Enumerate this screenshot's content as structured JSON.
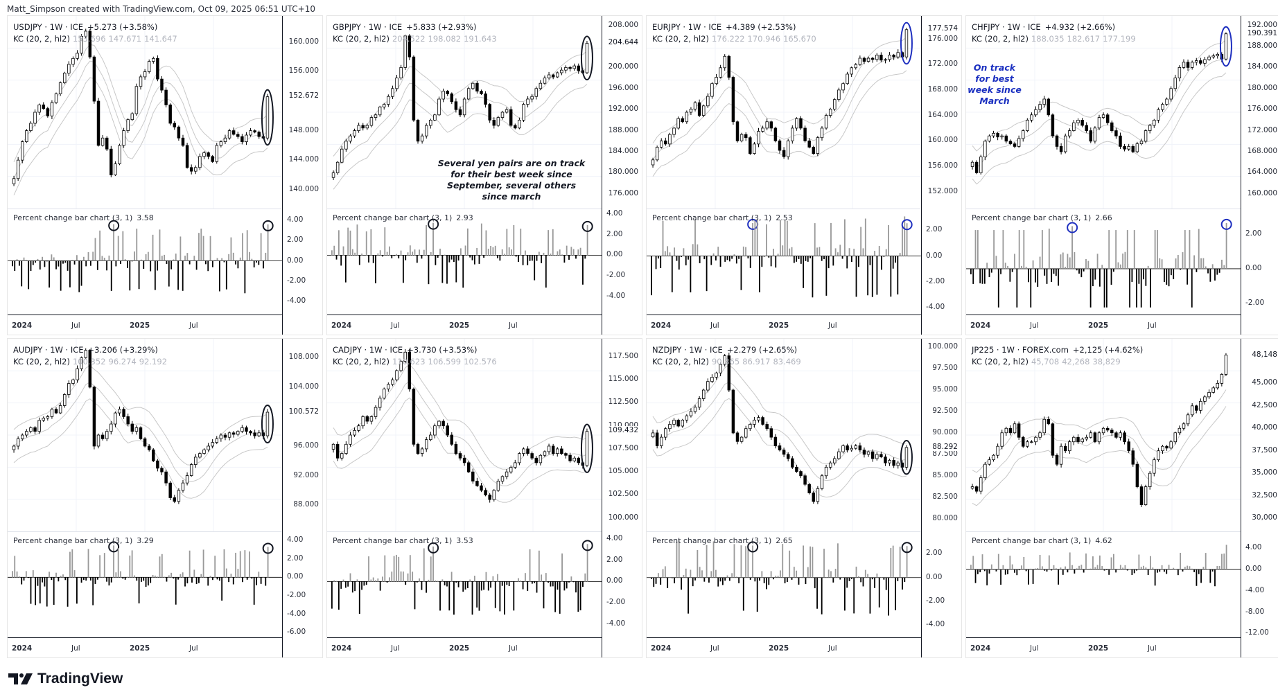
{
  "credit": "Matt_Simpson created with TradingView.com, Oct 09, 2025 06:51 UTC+10",
  "logo": {
    "text": "TradingView",
    "icon": "tradingview-logo-icon"
  },
  "colors": {
    "up_bar": "#999999",
    "down_bar": "#000000",
    "candle": "#000000",
    "kc_band": "#c8c8c8",
    "grid": "#f0f3fa",
    "circle_black": "#131722",
    "circle_blue": "#1e2fbf",
    "annotation_blue": "#1a2fc0"
  },
  "time_axis": [
    "2024",
    "Jul",
    "2025",
    "Jul"
  ],
  "annotations": {
    "gbpjpy": "Several yen pairs are on track for their best week since September, several others since march",
    "chfjpy": "On track for best week since March"
  },
  "chart_data": [
    {
      "id": "usdjpy",
      "type": "candlestick",
      "title": "USDJPY · 1W · ICE",
      "change": "+5.273 (+3.58%)",
      "kc_label": "KC (20, 2, hl2)",
      "kc_values": [
        "153.696",
        "147.671",
        "141.647"
      ],
      "price_ticks": [
        "160.000",
        "156.000",
        "148.000",
        "144.000",
        "140.000"
      ],
      "last_price": "152.672",
      "ylim": [
        138,
        163
      ],
      "closes": [
        141.5,
        144,
        146.5,
        148,
        149,
        150.5,
        151.5,
        151,
        150,
        151.8,
        153,
        154.5,
        155.8,
        157,
        157.8,
        158.5,
        160.8,
        161.5,
        158,
        152,
        146,
        147,
        145.5,
        142,
        143.5,
        146,
        148,
        149.5,
        150.3,
        154,
        155.3,
        156,
        157.4,
        157.8,
        155,
        153.5,
        151.5,
        149,
        148.5,
        147,
        146,
        143,
        142.5,
        143,
        144.5,
        145,
        144.5,
        143.8,
        146,
        146.5,
        147,
        148,
        147.5,
        147.2,
        146.5,
        147.4,
        148,
        147.8,
        147.2,
        147,
        152.6
      ],
      "pct_label": "Percent change bar chart (3, 1)",
      "pct_value": "3.58",
      "pct_ticks": [
        "4.00",
        "2.00",
        "0.00",
        "-2.00",
        "-4.00"
      ],
      "pct_ylim": [
        -5,
        4.8
      ],
      "circle_color": "black"
    },
    {
      "id": "gbpjpy",
      "type": "candlestick",
      "title": "GBPJPY · 1W · ICE",
      "change": "+5.833 (+2.93%)",
      "kc_label": "KC (20, 2, hl2)",
      "kc_values": [
        "204.522",
        "198.082",
        "191.643"
      ],
      "price_ticks": [
        "208.000",
        "200.000",
        "196.000",
        "192.000",
        "188.000",
        "184.000",
        "180.000",
        "176.000"
      ],
      "last_price": "204.644",
      "ylim": [
        174,
        209
      ],
      "closes": [
        180,
        182,
        184.5,
        186,
        187,
        188,
        189,
        188.5,
        189,
        190.5,
        191,
        192.5,
        193,
        194.5,
        196,
        198,
        200,
        206,
        202,
        190,
        186,
        187,
        189,
        190,
        191,
        194,
        195.5,
        195,
        193.5,
        192,
        191,
        194,
        196,
        197,
        195.5,
        195,
        193,
        190,
        189,
        190.5,
        191.5,
        192,
        189,
        188.5,
        190,
        193,
        194,
        194.5,
        196,
        197,
        198,
        198.6,
        198.2,
        199,
        199.5,
        200,
        199.8,
        200.3,
        199.4,
        199,
        204.6
      ],
      "pct_label": "Percent change bar chart (3, 1)",
      "pct_value": "2.93",
      "pct_ticks": [
        "4.00",
        "2.00",
        "0.00",
        "-2.00",
        "-4.00"
      ],
      "pct_ylim": [
        -5.5,
        4.2
      ],
      "circle_color": "black"
    },
    {
      "id": "eurjpy",
      "type": "candlestick",
      "title": "EURJPY · 1W · ICE",
      "change": "+4.389 (+2.53%)",
      "kc_label": "KC (20, 2, hl2)",
      "kc_values": [
        "176.222",
        "170.946",
        "165.670"
      ],
      "price_ticks": [
        "176.000",
        "172.000",
        "168.000",
        "164.000",
        "160.000",
        "156.000",
        "152.000"
      ],
      "last_price": "177.574",
      "ylim": [
        150,
        179
      ],
      "closes": [
        157,
        159,
        160,
        159.5,
        161,
        162,
        163.5,
        163,
        164.5,
        165,
        166,
        164,
        165.5,
        167,
        169,
        170,
        171.5,
        173.3,
        170,
        163,
        160,
        161,
        160.5,
        158,
        159.5,
        161.5,
        162,
        163,
        162,
        160,
        158.5,
        157.5,
        160,
        162,
        163.5,
        162,
        160,
        159,
        158,
        160.5,
        162,
        164,
        165,
        166.5,
        168,
        169,
        170.5,
        171.5,
        172,
        173,
        172.5,
        173,
        172.8,
        173.5,
        172.7,
        172.8,
        173.5,
        173.2,
        173.9,
        173.2,
        177.5
      ],
      "pct_label": "Percent change bar chart (3, 1)",
      "pct_value": "2.53",
      "pct_ticks": [
        "2.00",
        "0.00",
        "-2.00",
        "-4.00"
      ],
      "pct_ylim": [
        -4.3,
        3.4
      ],
      "circle_color": "blue"
    },
    {
      "id": "chfjpy",
      "type": "candlestick",
      "title": "CHFJPY · 1W · ICE",
      "change": "+4.932 (+2.66%)",
      "kc_label": "KC (20, 2, hl2)",
      "kc_values": [
        "188.035",
        "182.617",
        "177.199"
      ],
      "price_ticks": [
        "192.000",
        "188.000",
        "184.000",
        "180.000",
        "176.000",
        "172.000",
        "168.000",
        "164.000",
        "160.000"
      ],
      "last_price": "190.391",
      "ylim": [
        158,
        193
      ],
      "closes": [
        166,
        164,
        167,
        170,
        171,
        171.5,
        170.8,
        171,
        170,
        169.5,
        169,
        170.5,
        172,
        174,
        175,
        176,
        177,
        178,
        175,
        171,
        169,
        168,
        171,
        172,
        173.5,
        174,
        173,
        172,
        170,
        172.5,
        174.5,
        175,
        173.5,
        172,
        171,
        169,
        168.5,
        169,
        168,
        169.5,
        170,
        172,
        173,
        174,
        176,
        177,
        178,
        180,
        182,
        184,
        185,
        184,
        185,
        185.3,
        184.8,
        185.5,
        186,
        186.2,
        186.5,
        185.6,
        190.4
      ],
      "pct_label": "Percent change bar chart (3, 1)",
      "pct_value": "2.66",
      "pct_ticks": [
        "2.00",
        "0.00",
        "-2.00"
      ],
      "pct_ylim": [
        -2.5,
        3.3
      ],
      "circle_color": "blue"
    },
    {
      "id": "audjpy",
      "type": "candlestick",
      "title": "AUDJPY · 1W · ICE",
      "change": "+3.206 (+3.29%)",
      "kc_label": "KC (20, 2, hl2)",
      "kc_values": [
        "100.352",
        "96.274",
        "92.192"
      ],
      "price_ticks": [
        "108.000",
        "104.000",
        "96.000",
        "92.000",
        "88.000"
      ],
      "last_price": "100.572",
      "ylim": [
        85,
        110
      ],
      "closes": [
        96,
        97,
        97.5,
        98,
        98.5,
        98,
        99.5,
        99.8,
        100,
        101,
        100.5,
        101.5,
        103,
        104.5,
        105,
        106.5,
        108,
        109,
        104,
        96,
        97.5,
        97,
        98,
        99,
        100.5,
        101,
        100,
        99,
        98,
        98.5,
        97,
        96,
        95.5,
        94,
        93,
        92.5,
        91,
        89,
        88.5,
        90,
        91,
        92,
        93.5,
        94.5,
        95,
        95.5,
        96,
        96.5,
        97,
        97.5,
        97.2,
        97.8,
        97.6,
        98,
        98.5,
        98,
        97.8,
        97.4,
        97.8,
        97.4,
        100.6
      ],
      "pct_label": "Percent change bar chart (3, 1)",
      "pct_value": "3.29",
      "pct_ticks": [
        "4.00",
        "2.00",
        "0.00",
        "-2.00",
        "-4.00",
        "-6.00"
      ],
      "pct_ylim": [
        -6.2,
        4.6
      ],
      "circle_color": "black"
    },
    {
      "id": "cadjpy",
      "type": "candlestick",
      "title": "CADJPY · 1W · ICE",
      "change": "+3.730 (+3.53%)",
      "kc_label": "KC (20, 2, hl2)",
      "kc_values": [
        "110.623",
        "106.599",
        "102.576"
      ],
      "price_ticks": [
        "117.500",
        "115.000",
        "112.500",
        "110.000",
        "107.500",
        "105.000",
        "102.500",
        "100.000"
      ],
      "last_price": "109.432",
      "ylim": [
        99,
        119
      ],
      "closes": [
        108,
        106.5,
        107,
        108,
        109,
        109.5,
        110,
        111,
        110.5,
        111,
        112,
        113,
        114,
        114.5,
        115,
        116,
        117,
        118,
        114,
        108,
        107,
        107.5,
        108.5,
        109,
        110,
        110.5,
        110,
        109,
        108,
        107,
        106.5,
        106,
        105,
        104,
        103.5,
        103,
        102.5,
        102,
        103,
        104,
        104.5,
        105,
        105.5,
        106,
        107,
        107.5,
        107,
        106.5,
        106,
        106.8,
        107.2,
        107.8,
        107,
        107.5,
        107,
        106.8,
        106.2,
        106.5,
        106,
        105.7,
        109.4
      ],
      "pct_label": "Percent change bar chart (3, 1)",
      "pct_value": "3.53",
      "pct_ticks": [
        "4.00",
        "2.00",
        "0.00",
        "-2.00",
        "-4.00"
      ],
      "pct_ylim": [
        -5.0,
        4.4
      ],
      "circle_color": "black"
    },
    {
      "id": "nzdjpy",
      "type": "candlestick",
      "title": "NZDJPY · 1W · ICE",
      "change": "+2.279 (+2.65%)",
      "kc_label": "KC (20, 2, hl2)",
      "kc_values": [
        "90.365",
        "86.917",
        "83.469"
      ],
      "price_ticks": [
        "100.000",
        "97.500",
        "95.000",
        "92.500",
        "90.000",
        "87.500",
        "85.000",
        "82.500",
        "80.000"
      ],
      "last_price": "88.292",
      "ylim": [
        79,
        100.5
      ],
      "closes": [
        90,
        88.5,
        89.5,
        90.5,
        91,
        91.5,
        90.8,
        91.5,
        92,
        92.5,
        93,
        94,
        95,
        96,
        96.5,
        97,
        98,
        99,
        95,
        90,
        89,
        89.5,
        90.5,
        91,
        91.5,
        91.8,
        91,
        90.5,
        89.5,
        88.5,
        88,
        87.5,
        87,
        86,
        85.5,
        85,
        84,
        83,
        82,
        83.5,
        85,
        86,
        86.5,
        87,
        87.8,
        88.5,
        88,
        88.2,
        88.5,
        88,
        87.5,
        87.8,
        87,
        87.5,
        87.2,
        86.5,
        86.8,
        86.2,
        86.5,
        86,
        88.3
      ],
      "pct_label": "Percent change bar chart (3, 1)",
      "pct_value": "2.65",
      "pct_ticks": [
        "2.00",
        "0.00",
        "-2.00",
        "-4.00"
      ],
      "pct_ylim": [
        -4.8,
        3.6
      ],
      "circle_color": "black"
    },
    {
      "id": "jp225",
      "type": "candlestick",
      "title": "JP225 · 1W · FOREX.com",
      "change": "+2,125 (+4.62%)",
      "kc_label": "KC (20, 2, hl2)",
      "kc_values": [
        "45,708",
        "42,268",
        "38,829"
      ],
      "price_ticks": [
        "45,000",
        "42,500",
        "40,000",
        "37,500",
        "35,000",
        "32,500",
        "30,000"
      ],
      "last_price": "48,148",
      "ylim": [
        29000,
        49500
      ],
      "closes": [
        33500,
        33000,
        34500,
        36000,
        36500,
        37000,
        38000,
        39500,
        40000,
        39500,
        40500,
        39000,
        38000,
        38500,
        38500,
        39000,
        39500,
        41000,
        40500,
        37000,
        36000,
        38000,
        37500,
        38500,
        39000,
        38500,
        38800,
        39000,
        39500,
        38500,
        39500,
        40000,
        39800,
        39500,
        39000,
        39500,
        38500,
        37500,
        36000,
        33500,
        31500,
        33500,
        35000,
        36500,
        37500,
        38000,
        37800,
        38500,
        39500,
        40000,
        40500,
        41500,
        42500,
        42000,
        43000,
        43500,
        44000,
        44500,
        45000,
        46000,
        48148
      ],
      "pct_label": "Percent change bar chart (3, 1)",
      "pct_value": "4.62",
      "pct_ticks": [
        "4.00",
        "0.00",
        "-4.00",
        "-8.00",
        "-12.00"
      ],
      "pct_ylim": [
        -12.2,
        6.5
      ],
      "circle_color": "none"
    }
  ]
}
